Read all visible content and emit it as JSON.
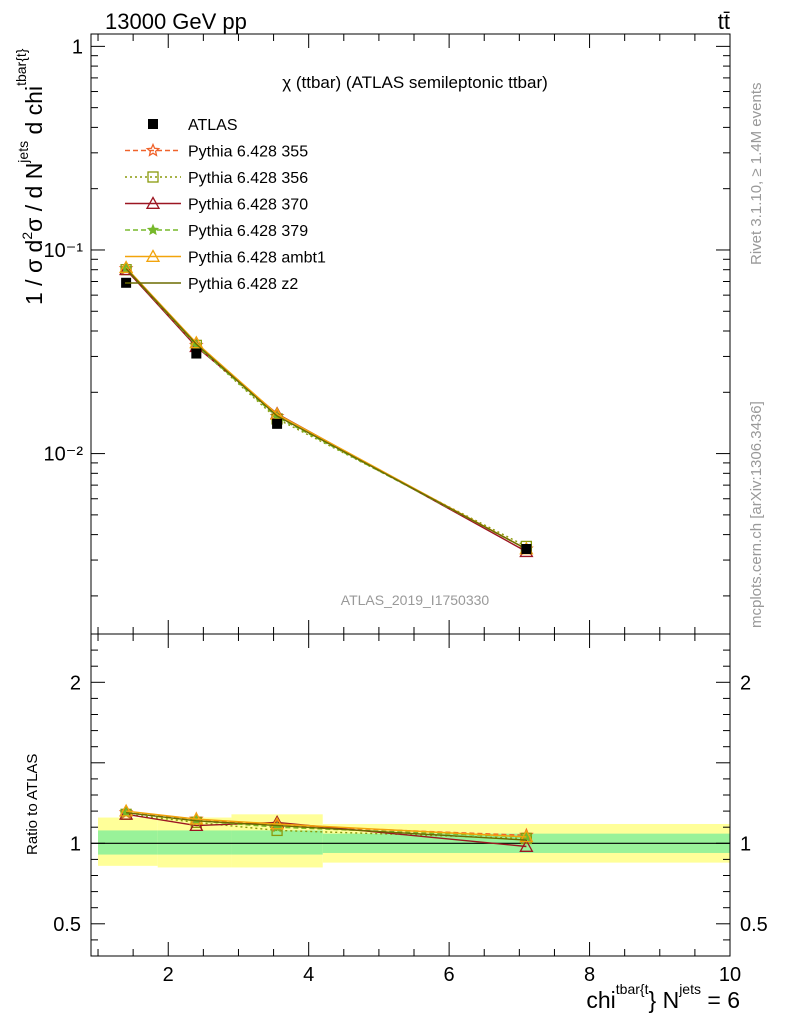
{
  "header": {
    "energy_label": "13000 GeV pp",
    "process_label": "tt̄"
  },
  "side_labels": {
    "rivet": "Rivet 3.1.10, ≥ 1.4M events",
    "mcplots": "mcplots.cern.ch [arXiv:1306.3436]"
  },
  "chart_data": [
    {
      "type": "line",
      "panel": "main",
      "title": "χ (ttbar) (ATLAS semileptonic ttbar)",
      "analysis_label": "ATLAS_2019_I1750330",
      "ylabel": "1 / σ d²σ / d N^jets d chi^tbar{t}",
      "yscale": "log",
      "xlim": [
        0.9,
        10.0
      ],
      "ylim": [
        0.0013,
        1.15
      ],
      "y_tick_labels": [
        "1",
        "10⁻¹",
        "10⁻²"
      ],
      "legend_position": "top-left",
      "x": [
        1.4,
        2.4,
        3.55,
        7.1
      ],
      "data_series": {
        "name": "ATLAS",
        "values": [
          0.069,
          0.031,
          0.014,
          0.0034
        ]
      },
      "series": [
        {
          "name": "Pythia 6.428 355",
          "color": "#f0632b",
          "values": [
            0.081,
            0.034,
            0.0152,
            0.0034
          ]
        },
        {
          "name": "Pythia 6.428 356",
          "color": "#8a9a0c",
          "values": [
            0.08,
            0.034,
            0.0148,
            0.0035
          ]
        },
        {
          "name": "Pythia 6.428 370",
          "color": "#9c1622",
          "values": [
            0.08,
            0.0335,
            0.0157,
            0.0033
          ]
        },
        {
          "name": "Pythia 6.428 379",
          "color": "#76b82a",
          "values": [
            0.081,
            0.034,
            0.0151,
            0.0034
          ]
        },
        {
          "name": "Pythia 6.428 ambt1",
          "color": "#f2a40c",
          "values": [
            0.082,
            0.035,
            0.0156,
            0.0034
          ]
        },
        {
          "name": "Pythia 6.428 z2",
          "color": "#6b6b00",
          "values": [
            0.081,
            0.0345,
            0.0153,
            0.0034
          ]
        }
      ]
    },
    {
      "type": "line",
      "panel": "ratio",
      "ylabel": "Ratio to ATLAS",
      "xlabel": "chi^tbar{t} N^jets = 6",
      "xlim": [
        0.9,
        10.0
      ],
      "ylim": [
        0.3,
        2.3
      ],
      "x_tick_labels": [
        "2",
        "4",
        "6",
        "8",
        "10"
      ],
      "y_tick_labels": [
        "2",
        "1",
        "0.5"
      ],
      "x": [
        1.4,
        2.4,
        3.55,
        7.1
      ],
      "bands": [
        {
          "xmin": 1.0,
          "xmax": 1.85,
          "stat_lo": 0.93,
          "stat_hi": 1.08,
          "total_lo": 0.86,
          "total_hi": 1.16
        },
        {
          "xmin": 1.85,
          "xmax": 2.9,
          "stat_lo": 0.93,
          "stat_hi": 1.08,
          "total_lo": 0.85,
          "total_hi": 1.16
        },
        {
          "xmin": 2.9,
          "xmax": 4.2,
          "stat_lo": 0.93,
          "stat_hi": 1.08,
          "total_lo": 0.85,
          "total_hi": 1.18
        },
        {
          "xmin": 4.2,
          "xmax": 10.0,
          "stat_lo": 0.94,
          "stat_hi": 1.06,
          "total_lo": 0.88,
          "total_hi": 1.12
        }
      ],
      "series": [
        {
          "name": "Pythia 6.428 355",
          "color": "#f0632b",
          "values": [
            1.19,
            1.15,
            1.11,
            1.05
          ]
        },
        {
          "name": "Pythia 6.428 356",
          "color": "#8a9a0c",
          "values": [
            1.18,
            1.13,
            1.08,
            1.03
          ]
        },
        {
          "name": "Pythia 6.428 370",
          "color": "#9c1622",
          "values": [
            1.18,
            1.11,
            1.13,
            0.98
          ]
        },
        {
          "name": "Pythia 6.428 379",
          "color": "#76b82a",
          "values": [
            1.19,
            1.14,
            1.1,
            1.04
          ]
        },
        {
          "name": "Pythia 6.428 ambt1",
          "color": "#f2a40c",
          "values": [
            1.2,
            1.15,
            1.12,
            1.04
          ]
        },
        {
          "name": "Pythia 6.428 z2",
          "color": "#6b6b00",
          "values": [
            1.19,
            1.14,
            1.11,
            1.02
          ]
        }
      ]
    }
  ]
}
